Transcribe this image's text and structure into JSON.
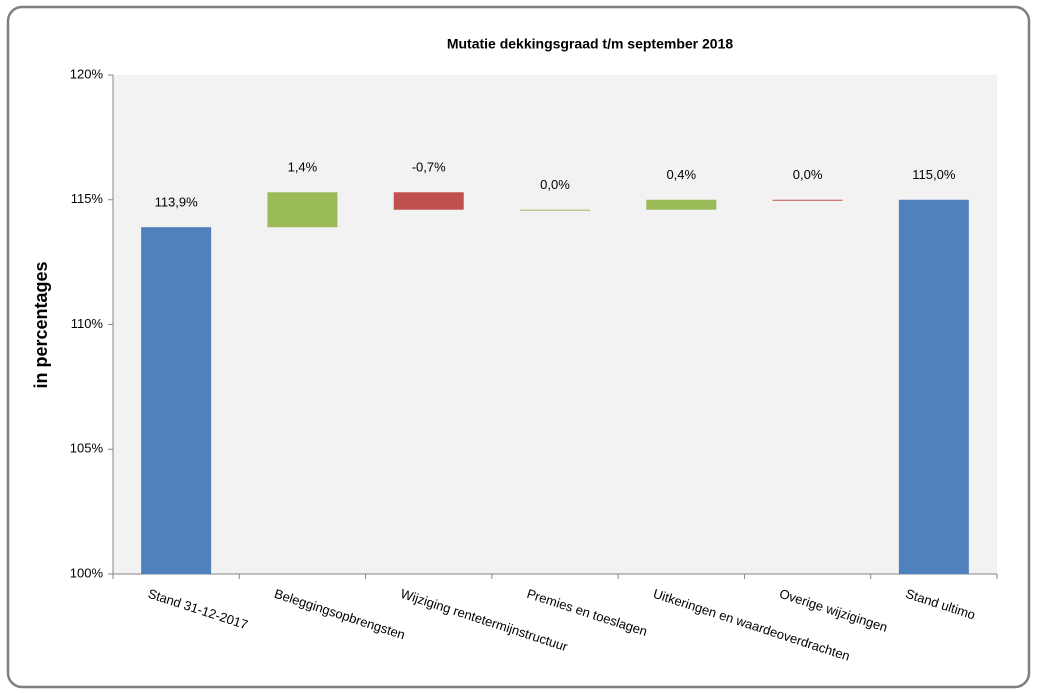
{
  "chart_data": {
    "type": "waterfall",
    "title": "Mutatie dekkingsgraad t/m september 2018",
    "y_label": "in percentages",
    "categories": [
      "Stand 31-12-2017",
      "Beleggingsopbrengsten",
      "Wijziging rentetermijnstructuur",
      "Premies en toeslagen",
      "Uitkeringen en waardeoverdrachten",
      "Overige wijzigingen",
      "Stand ultimo"
    ],
    "values": [
      113.9,
      1.4,
      -0.7,
      0.0,
      0.4,
      0.0,
      115.0
    ],
    "value_labels": [
      "113,9%",
      "1,4%",
      "-0,7%",
      "0,0%",
      "0,4%",
      "0,0%",
      "115,0%"
    ],
    "is_total": [
      true,
      false,
      false,
      false,
      false,
      false,
      true
    ],
    "colors": [
      "#4f81bd",
      "#9bbb59",
      "#c0504d",
      "#9bbb59",
      "#9bbb59",
      "#c0504d",
      "#4f81bd"
    ],
    "ylim": [
      100,
      120
    ],
    "yticks": [
      {
        "value": 100,
        "label": "100%"
      },
      {
        "value": 105,
        "label": "105%"
      },
      {
        "value": 110,
        "label": "110%"
      },
      {
        "value": 115,
        "label": "115%"
      },
      {
        "value": 120,
        "label": "120%"
      }
    ]
  }
}
